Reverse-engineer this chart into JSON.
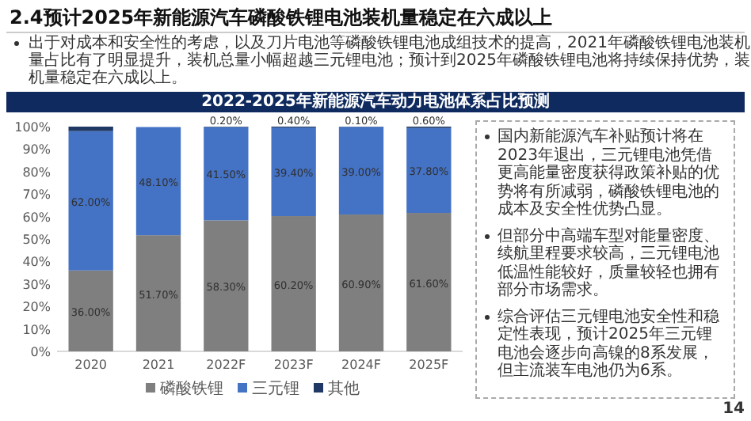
{
  "chart_data": {
    "type": "bar",
    "title": "2.4预计2025年新能源汽车磷酸铁锂电池装机量稳定在六成以上",
    "subtitle": "2022-2025年新能源汽车动力电池体系占比预测",
    "categories": [
      "2020",
      "2021",
      "2022F",
      "2023F",
      "2024F",
      "2025F"
    ],
    "stacked": true,
    "series": [
      {
        "name": "磷酸铁锂",
        "color": "#7f7f7f",
        "values": [
          36.0,
          51.7,
          58.3,
          60.2,
          60.9,
          61.6
        ],
        "value_labels": [
          "36.00%",
          "51.70%",
          "58.30%",
          "60.20%",
          "60.90%",
          "61.60%"
        ]
      },
      {
        "name": "三元锂",
        "color": "#4472c4",
        "values": [
          62.0,
          48.1,
          41.5,
          39.4,
          39.0,
          37.8
        ],
        "value_labels": [
          "62.00%",
          "48.10%",
          "41.50%",
          "39.40%",
          "39.00%",
          "37.80%"
        ]
      },
      {
        "name": "其他",
        "color": "#1f3864",
        "values": [
          2.0,
          null,
          0.2,
          0.4,
          0.1,
          0.6
        ],
        "value_labels": [
          null,
          null,
          "0.20%",
          "0.40%",
          "0.10%",
          "0.60%"
        ]
      }
    ],
    "ylim": [
      0,
      100
    ],
    "yticks": [
      {
        "value": 0,
        "label": "0%"
      },
      {
        "value": 10,
        "label": "10%"
      },
      {
        "value": 20,
        "label": "20%"
      },
      {
        "value": 30,
        "label": "30%"
      },
      {
        "value": 40,
        "label": "40%"
      },
      {
        "value": 50,
        "label": "50%"
      },
      {
        "value": 60,
        "label": "60%"
      },
      {
        "value": 70,
        "label": "70%"
      },
      {
        "value": 80,
        "label": "80%"
      },
      {
        "value": 90,
        "label": "90%"
      },
      {
        "value": 100,
        "label": "100%"
      }
    ],
    "legend": "bottom",
    "annotations": [
      "出于对成本和安全性的考虑，以及刀片电池等磷酸铁锂电池成组技术的提高，2021年磷酸铁锂电池装机量占比有了明显提升，装机总量小幅超越三元锂电池；预计到2025年磷酸铁锂电池将持续保持优势，装机量稳定在六成以上。",
      "国内新能源汽车补贴预计将在2023年退出，三元锂电池凭借更高能量密度获得政策补贴的优势将有所减弱，磷酸铁锂电池的成本及安全性优势凸显。",
      "但部分中高端车型对能量密度、续航里程要求较高，三元锂电池低温性能较好，质量较轻也拥有部分市场需求。",
      "综合评估三元锂电池安全性和稳定性表现，预计2025年三元锂电池会逐步向高镍的8系发展，但主流装车电池仍为6系。",
      "14"
    ]
  }
}
